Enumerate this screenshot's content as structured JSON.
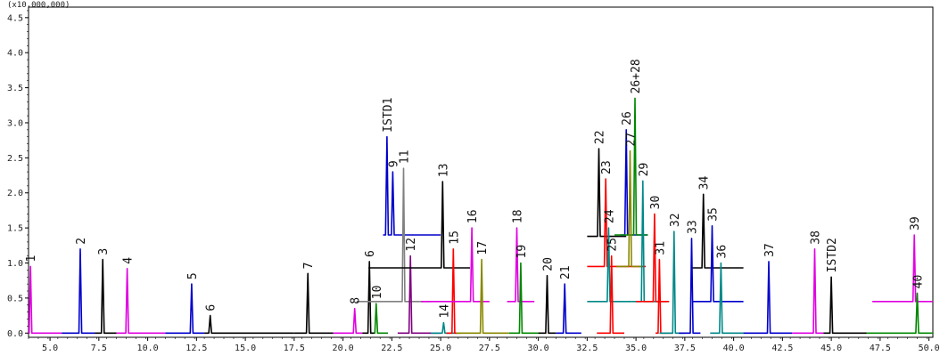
{
  "chart_data": {
    "type": "line",
    "title": "",
    "xlabel": "",
    "ylabel": "",
    "y_unit_label": "(x10,000,000)",
    "xlim": [
      3.9,
      50.2
    ],
    "ylim": [
      -0.06,
      4.65
    ],
    "x_ticks": [
      "5.0",
      "7.5",
      "10.0",
      "12.5",
      "15.0",
      "17.5",
      "20.0",
      "22.5",
      "25.0",
      "27.5",
      "30.0",
      "32.5",
      "35.0",
      "37.5",
      "40.0",
      "42.5",
      "45.0",
      "47.5",
      "50.0"
    ],
    "y_ticks": [
      "0.0",
      "0.5",
      "1.0",
      "1.5",
      "2.0",
      "2.5",
      "3.0",
      "3.5",
      "4.0",
      "4.5"
    ],
    "grid": false,
    "legend": "none",
    "series": [
      {
        "color": "#e000e0",
        "x_start": 3.9,
        "x_end": 5.6,
        "baseline": 0.0,
        "peaks": [
          {
            "label": "1",
            "x": 4.0,
            "height": 0.95
          }
        ]
      },
      {
        "color": "#0000cc",
        "x_start": 5.6,
        "x_end": 7.3,
        "baseline": 0.0,
        "peaks": [
          {
            "label": "2",
            "x": 6.55,
            "height": 1.2
          }
        ]
      },
      {
        "color": "#000000",
        "x_start": 7.3,
        "x_end": 8.4,
        "baseline": 0.0,
        "peaks": [
          {
            "label": "3",
            "x": 7.7,
            "height": 1.05
          }
        ]
      },
      {
        "color": "#e000e0",
        "x_start": 8.4,
        "x_end": 10.9,
        "baseline": 0.0,
        "peaks": [
          {
            "label": "4",
            "x": 8.95,
            "height": 0.92
          }
        ]
      },
      {
        "color": "#0000cc",
        "x_start": 10.9,
        "x_end": 12.9,
        "baseline": 0.0,
        "peaks": [
          {
            "label": "5",
            "x": 12.25,
            "height": 0.7
          }
        ]
      },
      {
        "color": "#000000",
        "x_start": 12.9,
        "x_end": 17.5,
        "baseline": 0.0,
        "peaks": [
          {
            "label": "6",
            "x": 13.2,
            "height": 0.25
          }
        ]
      },
      {
        "color": "#000000",
        "x_start": 17.5,
        "x_end": 19.5,
        "baseline": 0.0,
        "peaks": [
          {
            "label": "7",
            "x": 18.2,
            "height": 0.85
          }
        ]
      },
      {
        "color": "#e000e0",
        "x_start": 19.5,
        "x_end": 21.0,
        "baseline": 0.0,
        "peaks": [
          {
            "label": "8",
            "x": 20.6,
            "height": 0.35
          }
        ]
      },
      {
        "color": "#000000",
        "x_start": 21.0,
        "x_end": 21.6,
        "baseline": 0.0,
        "peaks": [
          {
            "label": "6",
            "x": 21.35,
            "height": 1.02
          }
        ]
      },
      {
        "color": "#008800",
        "x_start": 21.6,
        "x_end": 22.3,
        "baseline": 0.0,
        "peaks": [
          {
            "label": "10",
            "x": 21.7,
            "height": 0.42
          }
        ]
      },
      {
        "color": "#0000cc",
        "x_start": 22.05,
        "x_end": 25.0,
        "baseline": 1.4,
        "peaks": [
          {
            "label": "ISTD1",
            "x": 22.25,
            "height": 1.4
          },
          {
            "label": "9",
            "x": 22.55,
            "height": 0.9
          }
        ]
      },
      {
        "color": "#808080",
        "x_start": 20.7,
        "x_end": 24.5,
        "baseline": 0.45,
        "peaks": [
          {
            "label": "11",
            "x": 23.1,
            "height": 1.9
          }
        ]
      },
      {
        "color": "#800080",
        "x_start": 22.8,
        "x_end": 25.0,
        "baseline": 0.0,
        "peaks": [
          {
            "label": "12",
            "x": 23.45,
            "height": 1.1
          }
        ]
      },
      {
        "color": "#000000",
        "x_start": 21.3,
        "x_end": 26.5,
        "baseline": 0.93,
        "peaks": [
          {
            "label": "13",
            "x": 25.1,
            "height": 1.23
          }
        ]
      },
      {
        "color": "#008888",
        "x_start": 24.5,
        "x_end": 25.8,
        "baseline": 0.0,
        "peaks": [
          {
            "label": "14",
            "x": 25.15,
            "height": 0.15
          }
        ]
      },
      {
        "color": "#ff0000",
        "x_start": 25.3,
        "x_end": 26.0,
        "baseline": 0.0,
        "peaks": [
          {
            "label": "15",
            "x": 25.65,
            "height": 1.2
          }
        ]
      },
      {
        "color": "#e000e0",
        "x_start": 24.0,
        "x_end": 27.5,
        "baseline": 0.45,
        "peaks": [
          {
            "label": "16",
            "x": 26.6,
            "height": 1.05
          }
        ]
      },
      {
        "color": "#888800",
        "x_start": 25.8,
        "x_end": 28.5,
        "baseline": 0.0,
        "peaks": [
          {
            "label": "17",
            "x": 27.1,
            "height": 1.05
          }
        ]
      },
      {
        "color": "#e000e0",
        "x_start": 28.4,
        "x_end": 29.8,
        "baseline": 0.45,
        "peaks": [
          {
            "label": "18",
            "x": 28.9,
            "height": 1.05
          }
        ]
      },
      {
        "color": "#008800",
        "x_start": 28.5,
        "x_end": 30.0,
        "baseline": 0.0,
        "peaks": [
          {
            "label": "19",
            "x": 29.1,
            "height": 1.0
          }
        ]
      },
      {
        "color": "#000000",
        "x_start": 30.0,
        "x_end": 30.9,
        "baseline": 0.0,
        "peaks": [
          {
            "label": "20",
            "x": 30.45,
            "height": 0.82
          }
        ]
      },
      {
        "color": "#0000cc",
        "x_start": 30.9,
        "x_end": 32.2,
        "baseline": 0.0,
        "peaks": [
          {
            "label": "21",
            "x": 31.35,
            "height": 0.7
          }
        ]
      },
      {
        "color": "#000000",
        "x_start": 32.5,
        "x_end": 34.5,
        "baseline": 1.38,
        "peaks": [
          {
            "label": "22",
            "x": 33.1,
            "height": 1.25
          }
        ]
      },
      {
        "color": "#ff0000",
        "x_start": 32.5,
        "x_end": 35.5,
        "baseline": 0.95,
        "peaks": [
          {
            "label": "23",
            "x": 33.45,
            "height": 1.25
          }
        ]
      },
      {
        "color": "#008888",
        "x_start": 32.5,
        "x_end": 34.8,
        "baseline": 0.45,
        "peaks": [
          {
            "label": "24",
            "x": 33.6,
            "height": 1.05
          }
        ]
      },
      {
        "color": "#ff0000",
        "x_start": 33.0,
        "x_end": 34.4,
        "baseline": 0.0,
        "peaks": [
          {
            "label": "25",
            "x": 33.75,
            "height": 1.1
          }
        ]
      },
      {
        "color": "#0000cc",
        "x_start": 34.2,
        "x_end": 35.6,
        "baseline": 1.4,
        "peaks": [
          {
            "label": "26",
            "x": 34.5,
            "height": 1.5
          }
        ]
      },
      {
        "color": "#008800",
        "x_start": 33.9,
        "x_end": 35.6,
        "baseline": 1.4,
        "peaks": [
          {
            "label": "26+28",
            "x": 34.95,
            "height": 1.95
          }
        ]
      },
      {
        "color": "#888800",
        "x_start": 34.0,
        "x_end": 35.3,
        "baseline": 0.95,
        "peaks": [
          {
            "label": "27",
            "x": 34.7,
            "height": 1.65
          }
        ]
      },
      {
        "color": "#008888",
        "x_start": 34.8,
        "x_end": 36.6,
        "baseline": 0.45,
        "peaks": [
          {
            "label": "29",
            "x": 35.35,
            "height": 1.72
          }
        ]
      },
      {
        "color": "#ff0000",
        "x_start": 35.0,
        "x_end": 36.7,
        "baseline": 0.45,
        "peaks": [
          {
            "label": "30",
            "x": 35.95,
            "height": 1.25
          }
        ]
      },
      {
        "color": "#ff0000",
        "x_start": 36.0,
        "x_end": 36.9,
        "baseline": 0.0,
        "peaks": [
          {
            "label": "31",
            "x": 36.2,
            "height": 1.05
          }
        ]
      },
      {
        "color": "#008888",
        "x_start": 36.2,
        "x_end": 37.5,
        "baseline": 0.0,
        "peaks": [
          {
            "label": "32",
            "x": 36.95,
            "height": 1.45
          }
        ]
      },
      {
        "color": "#0000cc",
        "x_start": 37.2,
        "x_end": 38.3,
        "baseline": 0.0,
        "peaks": [
          {
            "label": "33",
            "x": 37.85,
            "height": 1.35
          }
        ]
      },
      {
        "color": "#000000",
        "x_start": 37.9,
        "x_end": 40.5,
        "baseline": 0.93,
        "peaks": [
          {
            "label": "34",
            "x": 38.45,
            "height": 1.05
          }
        ]
      },
      {
        "color": "#0000cc",
        "x_start": 37.9,
        "x_end": 40.5,
        "baseline": 0.45,
        "peaks": [
          {
            "label": "35",
            "x": 38.9,
            "height": 1.08
          }
        ]
      },
      {
        "color": "#008888",
        "x_start": 38.8,
        "x_end": 40.5,
        "baseline": 0.0,
        "peaks": [
          {
            "label": "36",
            "x": 39.35,
            "height": 1.0
          }
        ]
      },
      {
        "color": "#0000cc",
        "x_start": 40.5,
        "x_end": 43.0,
        "baseline": 0.0,
        "peaks": [
          {
            "label": "37",
            "x": 41.8,
            "height": 1.02
          }
        ]
      },
      {
        "color": "#e000e0",
        "x_start": 43.0,
        "x_end": 44.6,
        "baseline": 0.0,
        "peaks": [
          {
            "label": "38",
            "x": 44.15,
            "height": 1.2
          }
        ]
      },
      {
        "color": "#000000",
        "x_start": 44.6,
        "x_end": 46.8,
        "baseline": 0.0,
        "peaks": [
          {
            "label": "ISTD2",
            "x": 45.0,
            "height": 0.8
          }
        ]
      },
      {
        "color": "#e000e0",
        "x_start": 47.1,
        "x_end": 50.2,
        "baseline": 0.45,
        "peaks": [
          {
            "label": "39",
            "x": 49.25,
            "height": 0.95
          }
        ]
      },
      {
        "color": "#008800",
        "x_start": 46.8,
        "x_end": 50.2,
        "baseline": 0.0,
        "peaks": [
          {
            "label": "40",
            "x": 49.4,
            "height": 0.57
          }
        ]
      }
    ]
  }
}
